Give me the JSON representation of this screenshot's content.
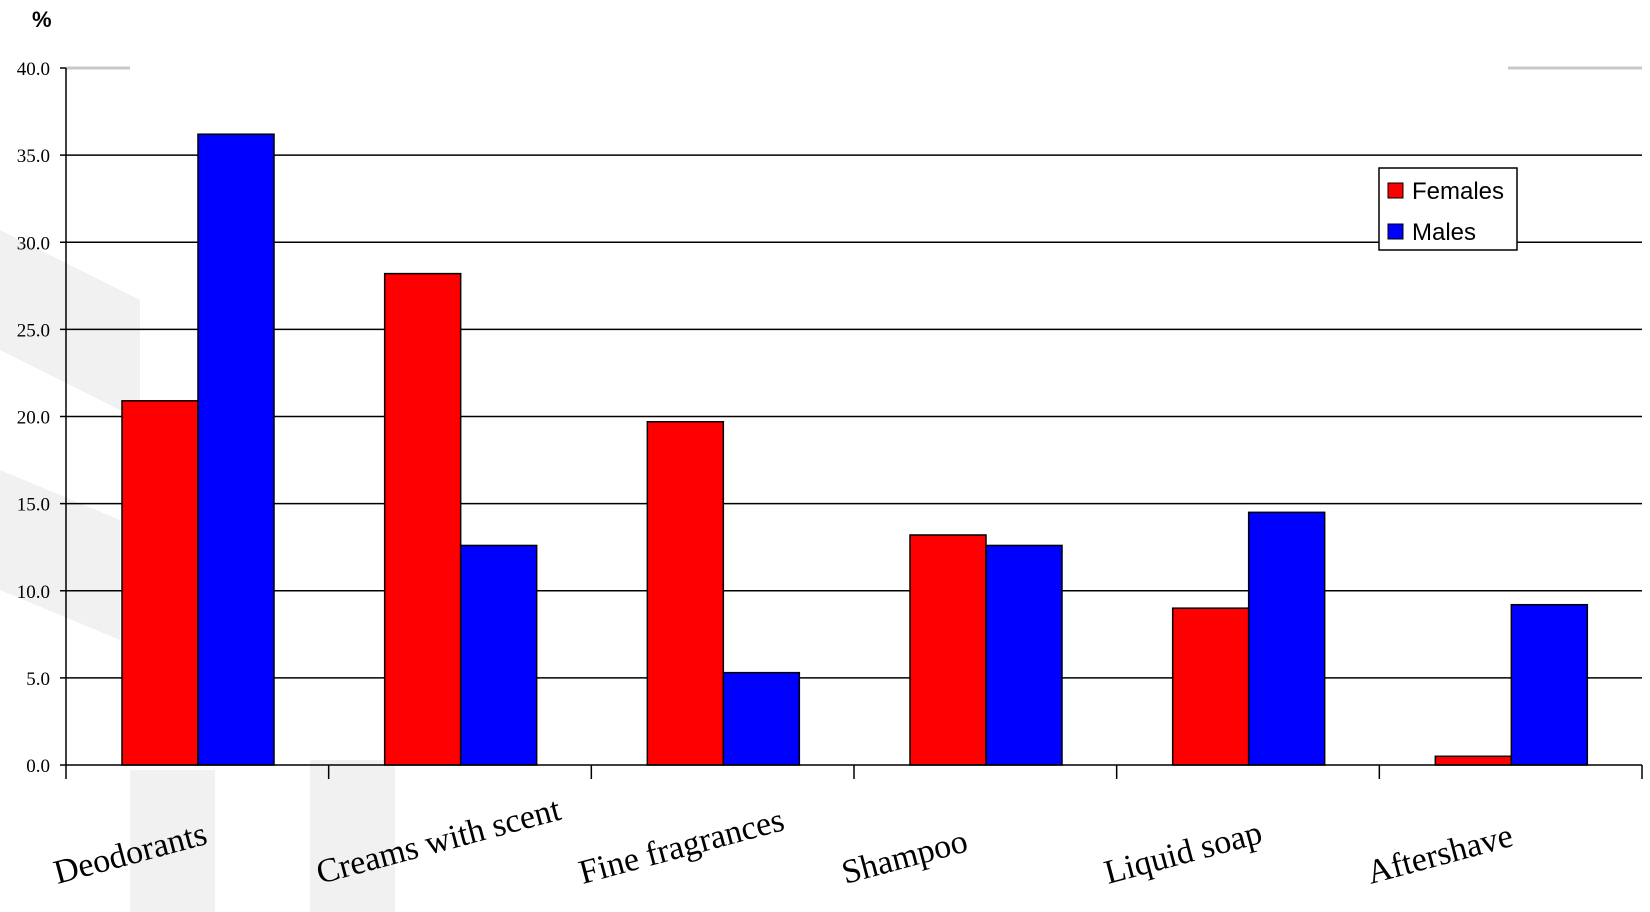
{
  "chart_data": {
    "type": "bar",
    "title": "",
    "ylabel": "%",
    "xlabel": "",
    "categories": [
      "Deodorants",
      "Creams with scent",
      "Fine fragrances",
      "Shampoo",
      "Liquid soap",
      "Aftershave"
    ],
    "series": [
      {
        "name": "Females",
        "color": "#ff0000",
        "values": [
          20.9,
          28.2,
          19.7,
          13.2,
          9.0,
          0.5
        ]
      },
      {
        "name": "Males",
        "color": "#0000ff",
        "values": [
          36.2,
          12.6,
          5.3,
          12.6,
          14.5,
          9.2
        ]
      }
    ],
    "ylim": [
      0,
      40
    ],
    "yticks": [
      "0.0",
      "5.0",
      "10.0",
      "15.0",
      "20.0",
      "25.0",
      "30.0",
      "35.0",
      "40.0"
    ],
    "grid": true,
    "legend_position": "top-right"
  }
}
